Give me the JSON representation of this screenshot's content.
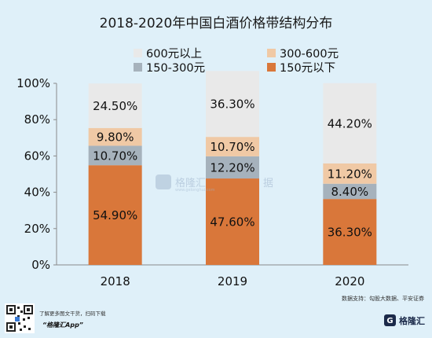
{
  "chart_data": {
    "type": "bar",
    "stacked": true,
    "title": "2018-2020年中国白酒价格带结构分布",
    "categories": [
      "2018",
      "2019",
      "2020"
    ],
    "series": [
      {
        "name": "150元以下",
        "color": "#d9773a",
        "values": [
          54.9,
          47.6,
          36.3
        ],
        "labels": [
          "54.90%",
          "47.60%",
          "36.30%"
        ]
      },
      {
        "name": "150-300元",
        "color": "#a6b2bc",
        "values": [
          10.7,
          12.2,
          8.4
        ],
        "labels": [
          "10.70%",
          "12.20%",
          "8.40%"
        ]
      },
      {
        "name": "300-600元",
        "color": "#f0c9a5",
        "values": [
          9.8,
          10.7,
          11.2
        ],
        "labels": [
          "9.80%",
          "10.70%",
          "11.20%"
        ]
      },
      {
        "name": "600元以上",
        "color": "#e9e9e9",
        "values": [
          24.5,
          36.3,
          44.2
        ],
        "labels": [
          "24.50%",
          "36.30%",
          "44.20%"
        ]
      }
    ],
    "legend_order": [
      "600元以上",
      "300-600元",
      "150-300元",
      "150元以下"
    ],
    "legend_position": "top",
    "yticks": [
      "0%",
      "20%",
      "40%",
      "60%",
      "80%",
      "100%"
    ],
    "ylim": [
      0,
      100
    ],
    "grid": false
  },
  "source_note": "数据支持：勾股大数据、平安证券",
  "promo": {
    "line1": "了解更多图文干货，扫码下载",
    "app": "“格隆汇App”"
  },
  "brand": "格隆汇",
  "watermark": {
    "text": "格隆汇",
    "sub": "www.gelonghui.com",
    "tail": "据"
  }
}
